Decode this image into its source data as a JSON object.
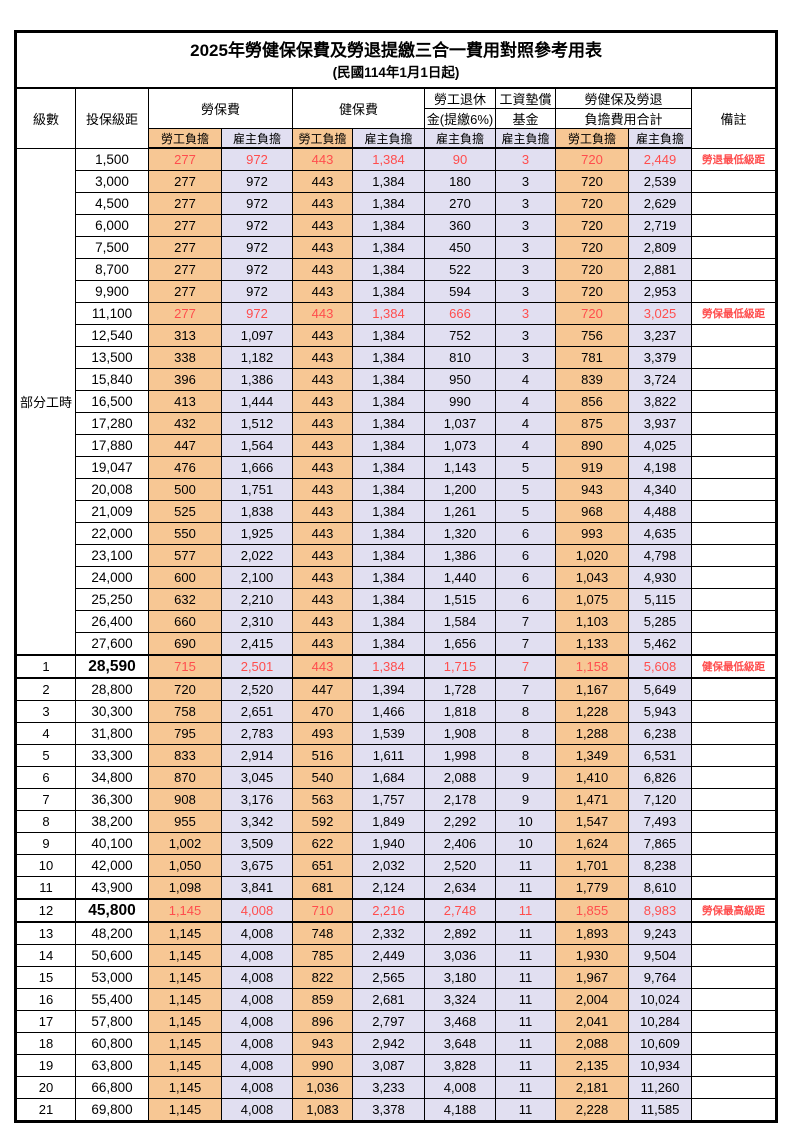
{
  "title": "2025年勞健保保費及勞退提繳三合一費用對照參考用表",
  "subtitle": "(民國114年1月1日起)",
  "colors": {
    "employee_bg": "#F7C794",
    "employer_bg": "#E1DFF1",
    "highlight_red": "#FF4D4D",
    "border": "#000000"
  },
  "header": {
    "level": "級數",
    "bracket": "投保級距",
    "labor_fee": "勞保費",
    "health_fee": "健保費",
    "pension_line1": "勞工退休",
    "pension_line2": "金(提繳6%)",
    "wage_fund_line1": "工資墊償",
    "wage_fund_line2": "基金",
    "total_line1": "勞健保及勞退",
    "total_line2": "負擔費用合計",
    "remark": "備註",
    "employee": "勞工負擔",
    "employer": "雇主負擔"
  },
  "part_time_label": "部分工時",
  "part_time_span": 23,
  "rows": [
    {
      "level": "",
      "bracket": "1,500",
      "v": [
        "277",
        "972",
        "443",
        "1,384",
        "90",
        "3",
        "720",
        "2,449"
      ],
      "remark": "勞退最低級距",
      "red": true,
      "big": false
    },
    {
      "level": "",
      "bracket": "3,000",
      "v": [
        "277",
        "972",
        "443",
        "1,384",
        "180",
        "3",
        "720",
        "2,539"
      ],
      "remark": "",
      "red": false,
      "big": false
    },
    {
      "level": "",
      "bracket": "4,500",
      "v": [
        "277",
        "972",
        "443",
        "1,384",
        "270",
        "3",
        "720",
        "2,629"
      ],
      "remark": "",
      "red": false,
      "big": false
    },
    {
      "level": "",
      "bracket": "6,000",
      "v": [
        "277",
        "972",
        "443",
        "1,384",
        "360",
        "3",
        "720",
        "2,719"
      ],
      "remark": "",
      "red": false,
      "big": false
    },
    {
      "level": "",
      "bracket": "7,500",
      "v": [
        "277",
        "972",
        "443",
        "1,384",
        "450",
        "3",
        "720",
        "2,809"
      ],
      "remark": "",
      "red": false,
      "big": false
    },
    {
      "level": "",
      "bracket": "8,700",
      "v": [
        "277",
        "972",
        "443",
        "1,384",
        "522",
        "3",
        "720",
        "2,881"
      ],
      "remark": "",
      "red": false,
      "big": false
    },
    {
      "level": "",
      "bracket": "9,900",
      "v": [
        "277",
        "972",
        "443",
        "1,384",
        "594",
        "3",
        "720",
        "2,953"
      ],
      "remark": "",
      "red": false,
      "big": false
    },
    {
      "level": "",
      "bracket": "11,100",
      "v": [
        "277",
        "972",
        "443",
        "1,384",
        "666",
        "3",
        "720",
        "3,025"
      ],
      "remark": "勞保最低級距",
      "red": true,
      "big": false
    },
    {
      "level": "",
      "bracket": "12,540",
      "v": [
        "313",
        "1,097",
        "443",
        "1,384",
        "752",
        "3",
        "756",
        "3,237"
      ],
      "remark": "",
      "red": false,
      "big": false
    },
    {
      "level": "",
      "bracket": "13,500",
      "v": [
        "338",
        "1,182",
        "443",
        "1,384",
        "810",
        "3",
        "781",
        "3,379"
      ],
      "remark": "",
      "red": false,
      "big": false
    },
    {
      "level": "",
      "bracket": "15,840",
      "v": [
        "396",
        "1,386",
        "443",
        "1,384",
        "950",
        "4",
        "839",
        "3,724"
      ],
      "remark": "",
      "red": false,
      "big": false
    },
    {
      "level": "",
      "bracket": "16,500",
      "v": [
        "413",
        "1,444",
        "443",
        "1,384",
        "990",
        "4",
        "856",
        "3,822"
      ],
      "remark": "",
      "red": false,
      "big": false
    },
    {
      "level": "",
      "bracket": "17,280",
      "v": [
        "432",
        "1,512",
        "443",
        "1,384",
        "1,037",
        "4",
        "875",
        "3,937"
      ],
      "remark": "",
      "red": false,
      "big": false
    },
    {
      "level": "",
      "bracket": "17,880",
      "v": [
        "447",
        "1,564",
        "443",
        "1,384",
        "1,073",
        "4",
        "890",
        "4,025"
      ],
      "remark": "",
      "red": false,
      "big": false
    },
    {
      "level": "",
      "bracket": "19,047",
      "v": [
        "476",
        "1,666",
        "443",
        "1,384",
        "1,143",
        "5",
        "919",
        "4,198"
      ],
      "remark": "",
      "red": false,
      "big": false
    },
    {
      "level": "",
      "bracket": "20,008",
      "v": [
        "500",
        "1,751",
        "443",
        "1,384",
        "1,200",
        "5",
        "943",
        "4,340"
      ],
      "remark": "",
      "red": false,
      "big": false
    },
    {
      "level": "",
      "bracket": "21,009",
      "v": [
        "525",
        "1,838",
        "443",
        "1,384",
        "1,261",
        "5",
        "968",
        "4,488"
      ],
      "remark": "",
      "red": false,
      "big": false
    },
    {
      "level": "",
      "bracket": "22,000",
      "v": [
        "550",
        "1,925",
        "443",
        "1,384",
        "1,320",
        "6",
        "993",
        "4,635"
      ],
      "remark": "",
      "red": false,
      "big": false
    },
    {
      "level": "",
      "bracket": "23,100",
      "v": [
        "577",
        "2,022",
        "443",
        "1,384",
        "1,386",
        "6",
        "1,020",
        "4,798"
      ],
      "remark": "",
      "red": false,
      "big": false
    },
    {
      "level": "",
      "bracket": "24,000",
      "v": [
        "600",
        "2,100",
        "443",
        "1,384",
        "1,440",
        "6",
        "1,043",
        "4,930"
      ],
      "remark": "",
      "red": false,
      "big": false
    },
    {
      "level": "",
      "bracket": "25,250",
      "v": [
        "632",
        "2,210",
        "443",
        "1,384",
        "1,515",
        "6",
        "1,075",
        "5,115"
      ],
      "remark": "",
      "red": false,
      "big": false
    },
    {
      "level": "",
      "bracket": "26,400",
      "v": [
        "660",
        "2,310",
        "443",
        "1,384",
        "1,584",
        "7",
        "1,103",
        "5,285"
      ],
      "remark": "",
      "red": false,
      "big": false
    },
    {
      "level": "",
      "bracket": "27,600",
      "v": [
        "690",
        "2,415",
        "443",
        "1,384",
        "1,656",
        "7",
        "1,133",
        "5,462"
      ],
      "remark": "",
      "red": false,
      "big": false
    },
    {
      "level": "1",
      "bracket": "28,590",
      "v": [
        "715",
        "2,501",
        "443",
        "1,384",
        "1,715",
        "7",
        "1,158",
        "5,608"
      ],
      "remark": "健保最低級距",
      "red": true,
      "big": true
    },
    {
      "level": "2",
      "bracket": "28,800",
      "v": [
        "720",
        "2,520",
        "447",
        "1,394",
        "1,728",
        "7",
        "1,167",
        "5,649"
      ],
      "remark": "",
      "red": false,
      "big": false
    },
    {
      "level": "3",
      "bracket": "30,300",
      "v": [
        "758",
        "2,651",
        "470",
        "1,466",
        "1,818",
        "8",
        "1,228",
        "5,943"
      ],
      "remark": "",
      "red": false,
      "big": false
    },
    {
      "level": "4",
      "bracket": "31,800",
      "v": [
        "795",
        "2,783",
        "493",
        "1,539",
        "1,908",
        "8",
        "1,288",
        "6,238"
      ],
      "remark": "",
      "red": false,
      "big": false
    },
    {
      "level": "5",
      "bracket": "33,300",
      "v": [
        "833",
        "2,914",
        "516",
        "1,611",
        "1,998",
        "8",
        "1,349",
        "6,531"
      ],
      "remark": "",
      "red": false,
      "big": false
    },
    {
      "level": "6",
      "bracket": "34,800",
      "v": [
        "870",
        "3,045",
        "540",
        "1,684",
        "2,088",
        "9",
        "1,410",
        "6,826"
      ],
      "remark": "",
      "red": false,
      "big": false
    },
    {
      "level": "7",
      "bracket": "36,300",
      "v": [
        "908",
        "3,176",
        "563",
        "1,757",
        "2,178",
        "9",
        "1,471",
        "7,120"
      ],
      "remark": "",
      "red": false,
      "big": false
    },
    {
      "level": "8",
      "bracket": "38,200",
      "v": [
        "955",
        "3,342",
        "592",
        "1,849",
        "2,292",
        "10",
        "1,547",
        "7,493"
      ],
      "remark": "",
      "red": false,
      "big": false
    },
    {
      "level": "9",
      "bracket": "40,100",
      "v": [
        "1,002",
        "3,509",
        "622",
        "1,940",
        "2,406",
        "10",
        "1,624",
        "7,865"
      ],
      "remark": "",
      "red": false,
      "big": false
    },
    {
      "level": "10",
      "bracket": "42,000",
      "v": [
        "1,050",
        "3,675",
        "651",
        "2,032",
        "2,520",
        "11",
        "1,701",
        "8,238"
      ],
      "remark": "",
      "red": false,
      "big": false
    },
    {
      "level": "11",
      "bracket": "43,900",
      "v": [
        "1,098",
        "3,841",
        "681",
        "2,124",
        "2,634",
        "11",
        "1,779",
        "8,610"
      ],
      "remark": "",
      "red": false,
      "big": false
    },
    {
      "level": "12",
      "bracket": "45,800",
      "v": [
        "1,145",
        "4,008",
        "710",
        "2,216",
        "2,748",
        "11",
        "1,855",
        "8,983"
      ],
      "remark": "勞保最高級距",
      "red": true,
      "big": true
    },
    {
      "level": "13",
      "bracket": "48,200",
      "v": [
        "1,145",
        "4,008",
        "748",
        "2,332",
        "2,892",
        "11",
        "1,893",
        "9,243"
      ],
      "remark": "",
      "red": false,
      "big": false
    },
    {
      "level": "14",
      "bracket": "50,600",
      "v": [
        "1,145",
        "4,008",
        "785",
        "2,449",
        "3,036",
        "11",
        "1,930",
        "9,504"
      ],
      "remark": "",
      "red": false,
      "big": false
    },
    {
      "level": "15",
      "bracket": "53,000",
      "v": [
        "1,145",
        "4,008",
        "822",
        "2,565",
        "3,180",
        "11",
        "1,967",
        "9,764"
      ],
      "remark": "",
      "red": false,
      "big": false
    },
    {
      "level": "16",
      "bracket": "55,400",
      "v": [
        "1,145",
        "4,008",
        "859",
        "2,681",
        "3,324",
        "11",
        "2,004",
        "10,024"
      ],
      "remark": "",
      "red": false,
      "big": false
    },
    {
      "level": "17",
      "bracket": "57,800",
      "v": [
        "1,145",
        "4,008",
        "896",
        "2,797",
        "3,468",
        "11",
        "2,041",
        "10,284"
      ],
      "remark": "",
      "red": false,
      "big": false
    },
    {
      "level": "18",
      "bracket": "60,800",
      "v": [
        "1,145",
        "4,008",
        "943",
        "2,942",
        "3,648",
        "11",
        "2,088",
        "10,609"
      ],
      "remark": "",
      "red": false,
      "big": false
    },
    {
      "level": "19",
      "bracket": "63,800",
      "v": [
        "1,145",
        "4,008",
        "990",
        "3,087",
        "3,828",
        "11",
        "2,135",
        "10,934"
      ],
      "remark": "",
      "red": false,
      "big": false
    },
    {
      "level": "20",
      "bracket": "66,800",
      "v": [
        "1,145",
        "4,008",
        "1,036",
        "3,233",
        "4,008",
        "11",
        "2,181",
        "11,260"
      ],
      "remark": "",
      "red": false,
      "big": false
    },
    {
      "level": "21",
      "bracket": "69,800",
      "v": [
        "1,145",
        "4,008",
        "1,083",
        "3,378",
        "4,188",
        "11",
        "2,228",
        "11,585"
      ],
      "remark": "",
      "red": false,
      "big": false
    }
  ]
}
